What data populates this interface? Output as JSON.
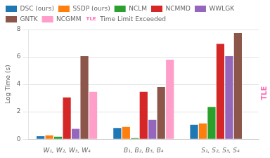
{
  "chart_data": {
    "type": "bar",
    "categories": [
      "W₁, W₂, W₃, W₄",
      "B₁, B₂, B₃, B₄",
      "S₁, S₂, S₃, S₄"
    ],
    "series": [
      {
        "name": "DSC (ours)",
        "color": "#1f77b4",
        "values": [
          0.22,
          0.82,
          1.05
        ]
      },
      {
        "name": "SSDP (ours)",
        "color": "#ff7f0e",
        "values": [
          0.28,
          0.9,
          1.15
        ]
      },
      {
        "name": "NCLM",
        "color": "#2ca02c",
        "values": [
          0.18,
          0.08,
          2.35
        ]
      },
      {
        "name": "NCMMD",
        "color": "#d62728",
        "values": [
          3.05,
          3.45,
          6.95
        ]
      },
      {
        "name": "WWLGK",
        "color": "#9467bd",
        "values": [
          0.75,
          1.4,
          6.05
        ]
      },
      {
        "name": "GNTK",
        "color": "#8c564b",
        "values": [
          6.05,
          3.8,
          7.75
        ]
      },
      {
        "name": "NCGMM",
        "color": "#ff9ec8",
        "values": [
          3.45,
          5.8,
          0.0
        ]
      }
    ],
    "y_label": "Log Time (s)",
    "ylim": [
      0,
      8
    ],
    "yticks": [
      0,
      2,
      4,
      6,
      8
    ],
    "grid": true,
    "legend": "upper left",
    "annotations": [
      {
        "text": "TLE",
        "color": "#ff69b4"
      },
      {
        "label": "TLE",
        "text": "Time Limit Exceeded",
        "color": "#ff69b4"
      }
    ]
  }
}
